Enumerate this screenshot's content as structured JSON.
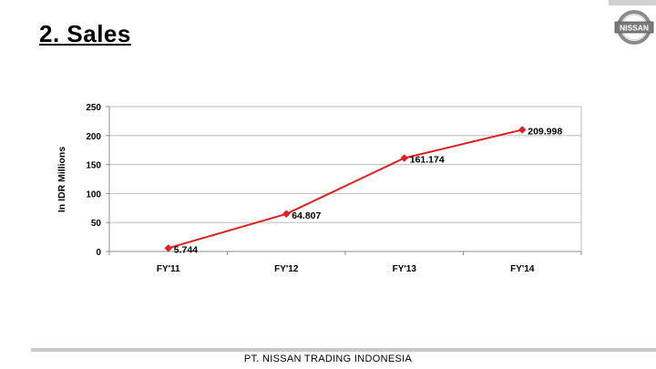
{
  "slide": {
    "title": "2. Sales",
    "footer": "PT. NISSAN TRADING INDONESIA"
  },
  "logo": {
    "icon": "nissan-logo",
    "text": "NISSAN"
  },
  "colors": {
    "series": "#e02020",
    "grid": "#bdbdbd",
    "axis": "#8c8c8c",
    "footer_rule": "#c8c8c8",
    "logo_bar": "#d0d0d0"
  },
  "chart_data": {
    "type": "line",
    "categories": [
      "FY'11",
      "FY'12",
      "FY'13",
      "FY'14"
    ],
    "series": [
      {
        "values": [
          5.744,
          64.807,
          161.174,
          209.998
        ]
      }
    ],
    "data_labels": [
      "5.744",
      "64.807",
      "161.174",
      "209.998"
    ],
    "ylabel": "In IDR Millions",
    "ylim": [
      0,
      250
    ],
    "yticks": [
      "0",
      "50",
      "100",
      "150",
      "200",
      "250"
    ],
    "grid": true,
    "legend": "none"
  }
}
